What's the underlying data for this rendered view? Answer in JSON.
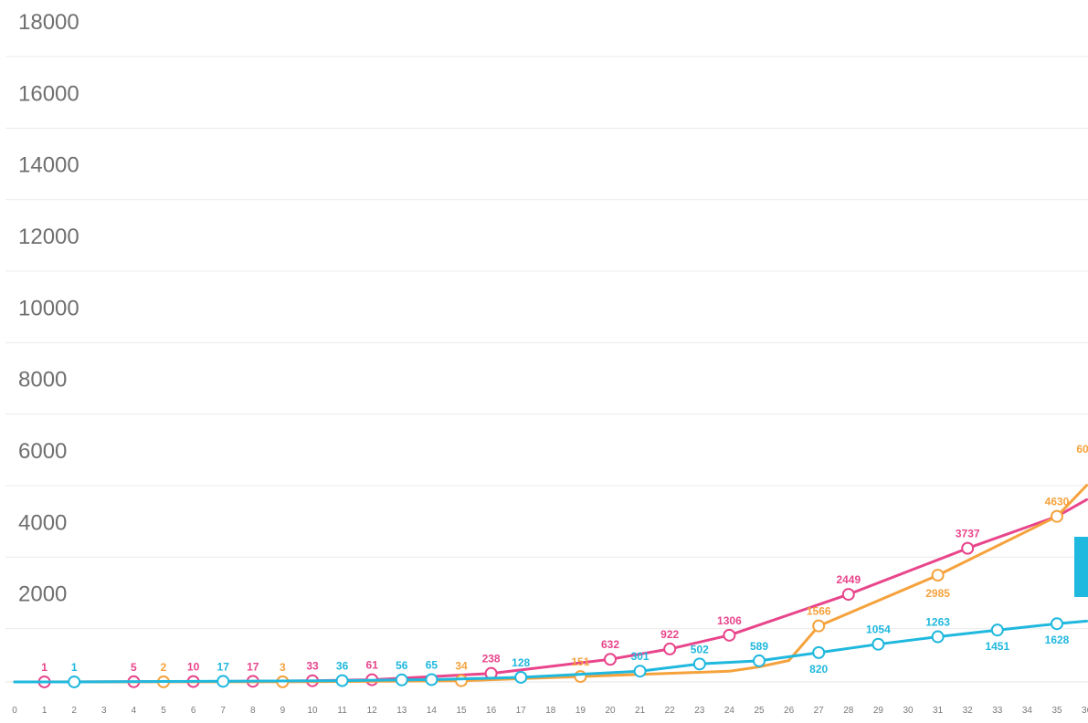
{
  "chart_data": {
    "type": "line",
    "title": "",
    "xlabel": "",
    "ylabel": "",
    "ylim": [
      0,
      18000
    ],
    "xlim": [
      0,
      36
    ],
    "y_ticks": [
      2000,
      4000,
      6000,
      8000,
      10000,
      12000,
      14000,
      16000,
      18000
    ],
    "x_ticks": [
      0,
      1,
      2,
      3,
      4,
      5,
      6,
      7,
      8,
      9,
      10,
      11,
      12,
      13,
      14,
      15,
      16,
      17,
      18,
      19,
      20,
      21,
      22,
      23,
      24,
      25,
      26,
      27,
      28,
      29,
      30,
      31,
      32,
      33,
      34,
      35,
      36
    ],
    "x_tick_labels": [
      "0",
      "1",
      "2",
      "3",
      "4",
      "5",
      "6",
      "7",
      "8",
      "9",
      "10",
      "11",
      "12",
      "13",
      "14",
      "15",
      "16",
      "17",
      "18",
      "19",
      "20",
      "21",
      "22",
      "23",
      "24",
      "25",
      "26",
      "27",
      "28",
      "29",
      "30",
      "31",
      "32",
      "33",
      "34",
      "35",
      "36"
    ],
    "grid": true,
    "legend": "none",
    "series": [
      {
        "color": "#e8458b",
        "line": [
          [
            0,
            0
          ],
          [
            1,
            1
          ],
          [
            4,
            5
          ],
          [
            6,
            10
          ],
          [
            8,
            17
          ],
          [
            10,
            33
          ],
          [
            12,
            61
          ],
          [
            16,
            238
          ],
          [
            20,
            632
          ],
          [
            22,
            922
          ],
          [
            24,
            1306
          ],
          [
            28,
            2449
          ],
          [
            32,
            3737
          ],
          [
            35,
            4630
          ],
          [
            36,
            5100
          ]
        ],
        "points": [
          1,
          4,
          6,
          8,
          10,
          12,
          16,
          20,
          22,
          24,
          28,
          32
        ],
        "labels": [
          {
            "x": 1,
            "y": 1,
            "text": "1"
          },
          {
            "x": 4,
            "y": 5,
            "text": "5"
          },
          {
            "x": 6,
            "y": 10,
            "text": "10"
          },
          {
            "x": 8,
            "y": 17,
            "text": "17"
          },
          {
            "x": 10,
            "y": 33,
            "text": "33"
          },
          {
            "x": 12,
            "y": 61,
            "text": "61"
          },
          {
            "x": 16,
            "y": 238,
            "text": "238"
          },
          {
            "x": 20,
            "y": 632,
            "text": "632"
          },
          {
            "x": 22,
            "y": 922,
            "text": "922"
          },
          {
            "x": 24,
            "y": 1306,
            "text": "1306"
          },
          {
            "x": 28,
            "y": 2449,
            "text": "2449"
          },
          {
            "x": 32,
            "y": 3737,
            "text": "3737"
          }
        ]
      },
      {
        "color": "#f5a23c",
        "line": [
          [
            0,
            0
          ],
          [
            5,
            2
          ],
          [
            9,
            3
          ],
          [
            15,
            34
          ],
          [
            19,
            151
          ],
          [
            24,
            300
          ],
          [
            25,
            420
          ],
          [
            26,
            600
          ],
          [
            27,
            1566
          ],
          [
            31,
            2985
          ],
          [
            35,
            4630
          ],
          [
            36,
            5500
          ]
        ],
        "points": [
          5,
          9,
          15,
          19,
          27,
          31,
          35
        ],
        "labels": [
          {
            "x": 5,
            "y": 2,
            "text": "2"
          },
          {
            "x": 9,
            "y": 3,
            "text": "3"
          },
          {
            "x": 15,
            "y": 34,
            "text": "34"
          },
          {
            "x": 19,
            "y": 151,
            "text": "151"
          },
          {
            "x": 27,
            "y": 1566,
            "text": "1566"
          },
          {
            "x": 31,
            "y": 2985,
            "text": "2985"
          },
          {
            "x": 35,
            "y": 4630,
            "text": "4630"
          },
          {
            "x": 36,
            "y": 6000,
            "text": "60"
          }
        ]
      },
      {
        "color": "#1fb8de",
        "line": [
          [
            0,
            0
          ],
          [
            2,
            1
          ],
          [
            7,
            17
          ],
          [
            11,
            36
          ],
          [
            13,
            56
          ],
          [
            14,
            65
          ],
          [
            17,
            128
          ],
          [
            21,
            301
          ],
          [
            23,
            502
          ],
          [
            25,
            589
          ],
          [
            27,
            820
          ],
          [
            29,
            1054
          ],
          [
            31,
            1263
          ],
          [
            33,
            1451
          ],
          [
            35,
            1628
          ],
          [
            36,
            1700
          ]
        ],
        "points": [
          2,
          7,
          11,
          13,
          14,
          17,
          21,
          23,
          25,
          27,
          29,
          31,
          33,
          35
        ],
        "labels": [
          {
            "x": 2,
            "y": 1,
            "text": "1"
          },
          {
            "x": 7,
            "y": 17,
            "text": "17"
          },
          {
            "x": 11,
            "y": 36,
            "text": "36"
          },
          {
            "x": 13,
            "y": 56,
            "text": "56"
          },
          {
            "x": 14,
            "y": 65,
            "text": "65"
          },
          {
            "x": 17,
            "y": 128,
            "text": "128"
          },
          {
            "x": 21,
            "y": 301,
            "text": "301"
          },
          {
            "x": 23,
            "y": 502,
            "text": "502"
          },
          {
            "x": 25,
            "y": 589,
            "text": "589"
          },
          {
            "x": 27,
            "y": 820,
            "text": "820"
          },
          {
            "x": 29,
            "y": 1054,
            "text": "1054"
          },
          {
            "x": 31,
            "y": 1263,
            "text": "1263"
          },
          {
            "x": 33,
            "y": 1451,
            "text": "1451"
          },
          {
            "x": 35,
            "y": 1628,
            "text": "1628"
          }
        ]
      }
    ]
  }
}
